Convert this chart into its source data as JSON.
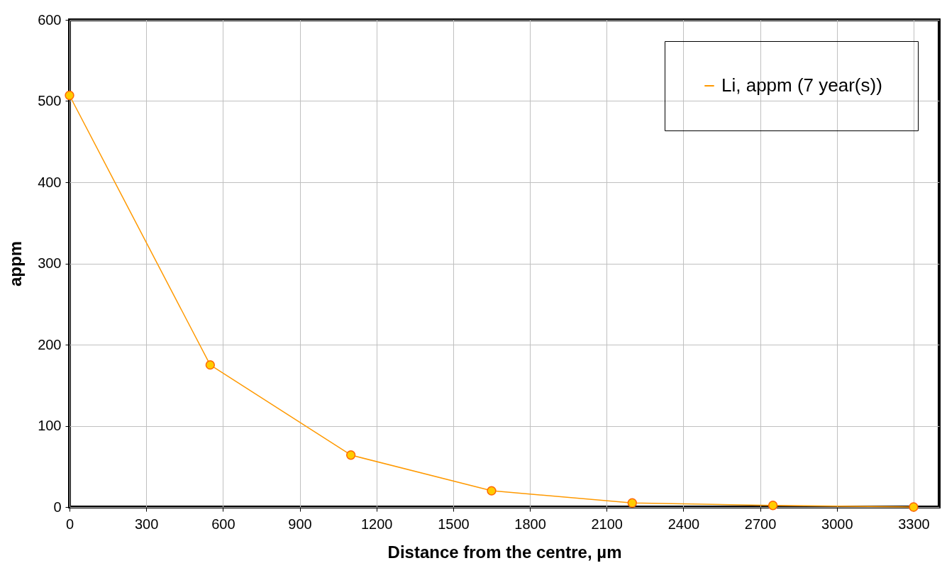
{
  "chart_data": {
    "type": "line",
    "xlabel": "Distance from the centre, µm",
    "ylabel": "appm",
    "x": [
      0,
      550,
      1100,
      1650,
      2200,
      2750,
      3300
    ],
    "series": [
      {
        "name": "Li, appm (7 year(s))",
        "color": "#ff9900",
        "values": [
          507,
          175,
          64,
          20,
          5,
          2,
          0
        ]
      }
    ],
    "xlim": [
      0,
      3400
    ],
    "xticks": [
      0,
      300,
      600,
      900,
      1200,
      1500,
      1800,
      2100,
      2400,
      2700,
      3000,
      3300
    ],
    "ylim": [
      0,
      600
    ],
    "yticks": [
      0,
      100,
      200,
      300,
      400,
      500,
      600
    ],
    "grid": true,
    "legend": "top right",
    "marker": "circle",
    "line_style": "solid"
  }
}
